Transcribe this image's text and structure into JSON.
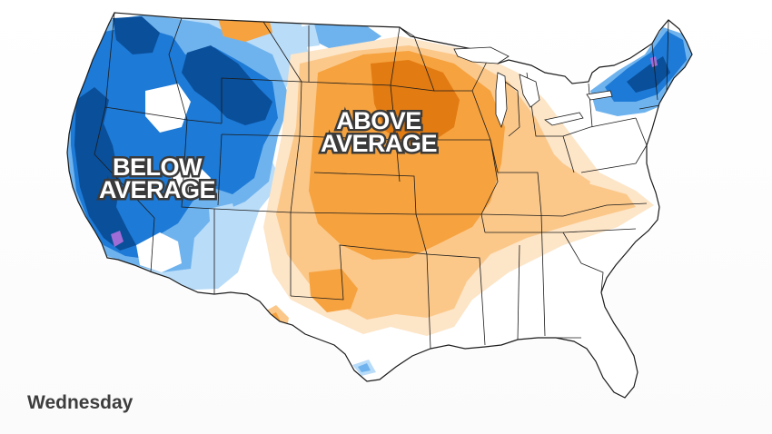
{
  "map": {
    "region": "Contiguous United States",
    "labels": {
      "below": [
        "BELOW",
        "AVERAGE"
      ],
      "above": [
        "ABOVE",
        "AVERAGE"
      ]
    },
    "day_label": "Wednesday",
    "colors": {
      "below_dark": "#0a4f9a",
      "below_mid": "#1d7ad6",
      "below_light": "#6fb3ee",
      "below_pale": "#b9dcf8",
      "below_extreme": "#a06cd5",
      "above_dark": "#e27b12",
      "above_mid": "#f6a23e",
      "above_light": "#fbc88a",
      "above_pale": "#fde5c7",
      "neutral": "#ffffff",
      "border": "#1b1b1b"
    }
  }
}
